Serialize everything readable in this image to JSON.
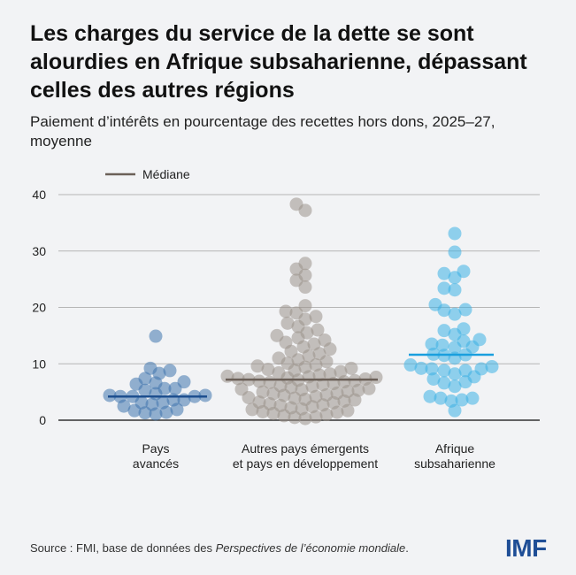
{
  "title": "Les charges du service de la dette se sont alourdies en Afrique subsaharienne, dépassant celles des autres régions",
  "subtitle": "Paiement d’intérêts en pourcentage des recettes hors dons, 2025–27, moyenne",
  "source": {
    "prefix": "Source : FMI, base de données des ",
    "italic": "Perspectives de l’économie mondiale",
    "suffix": "."
  },
  "logo": "IMF",
  "chart_data": {
    "type": "scatter",
    "subtype": "beeswarm",
    "legend": {
      "label": "Médiane",
      "placement": "top-left"
    },
    "ylim": [
      0,
      40
    ],
    "yticks": [
      "0",
      "10",
      "20",
      "30",
      "40"
    ],
    "grid": true,
    "groups": [
      {
        "name": "Pays avancés",
        "label_lines": [
          "Pays",
          "avancés"
        ],
        "color": "#3f74ad",
        "median_color": "#1d4f8f",
        "median": 4.2,
        "values": [
          14.9,
          9.2,
          8.8,
          8.3,
          7.4,
          6.8,
          6.6,
          6.4,
          5.6,
          5.6,
          5.3,
          4.7,
          4.4,
          4.4,
          4.2,
          4.2,
          4.2,
          3.6,
          3.6,
          3.1,
          3.1,
          2.8,
          2.5,
          1.9,
          1.7,
          1.4,
          1.3,
          1.1
        ]
      },
      {
        "name": "Autres pays émergents et pays en développement",
        "label_lines": [
          "Autres pays émergents",
          "et pays en développement"
        ],
        "color": "#9a918b",
        "median_color": "#6b6058",
        "median": 7.2,
        "values": [
          38.3,
          37.2,
          27.8,
          26.8,
          25.7,
          24.8,
          23.6,
          20.3,
          19.3,
          19.0,
          18.4,
          17.9,
          17.2,
          16.6,
          16.0,
          15.5,
          15.0,
          14.6,
          14.2,
          13.8,
          13.5,
          13.0,
          12.6,
          12.2,
          11.8,
          11.4,
          11.0,
          10.7,
          10.4,
          10.1,
          9.8,
          9.6,
          9.4,
          9.2,
          9.0,
          8.8,
          8.6,
          8.4,
          8.2,
          8.0,
          7.8,
          7.7,
          7.6,
          7.5,
          7.4,
          7.3,
          7.2,
          7.1,
          7.0,
          6.9,
          6.8,
          6.7,
          6.5,
          6.3,
          6.1,
          6.0,
          5.8,
          5.6,
          5.5,
          5.4,
          5.3,
          5.1,
          5.0,
          4.8,
          4.7,
          4.5,
          4.4,
          4.2,
          4.0,
          3.9,
          3.7,
          3.6,
          3.4,
          3.2,
          3.1,
          2.9,
          2.7,
          2.6,
          2.4,
          2.2,
          2.0,
          1.9,
          1.7,
          1.5,
          1.4,
          1.2,
          1.0,
          0.8,
          0.6,
          0.5,
          0.3
        ]
      },
      {
        "name": "Afrique subsaharienne",
        "label_lines": [
          "Afrique",
          "subsaharienne"
        ],
        "color": "#3cb0e4",
        "median_color": "#1a9fde",
        "median": 11.6,
        "values": [
          33.1,
          29.8,
          26.4,
          26.0,
          25.3,
          23.4,
          23.1,
          20.5,
          19.6,
          19.5,
          18.8,
          16.2,
          15.9,
          15.2,
          14.3,
          14.0,
          13.5,
          13.3,
          13.0,
          12.9,
          11.7,
          11.6,
          11.5,
          11.0,
          9.8,
          9.5,
          9.2,
          9.1,
          9.1,
          8.8,
          8.8,
          8.2,
          7.7,
          7.3,
          6.8,
          6.6,
          6.0,
          4.2,
          3.9,
          3.9,
          3.6,
          3.4,
          1.7
        ]
      }
    ]
  }
}
